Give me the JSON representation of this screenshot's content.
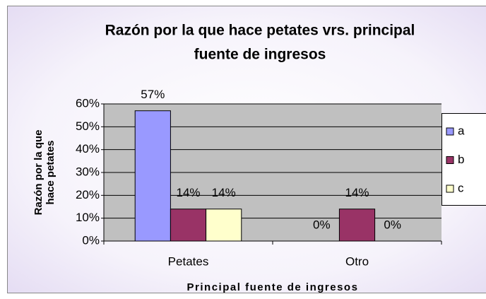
{
  "chart_data": {
    "type": "bar",
    "title": [
      "Razón por la que hace petates vrs. principal",
      "fuente de ingresos"
    ],
    "xlabel": "Principal fuente de ingresos",
    "ylabel": [
      "Razón por la que",
      "hace petates"
    ],
    "categories": [
      "Petates",
      "Otro"
    ],
    "series": [
      {
        "name": "a",
        "color": "#9999ff",
        "values": [
          57,
          0
        ],
        "value_labels": [
          "57%",
          "0%"
        ]
      },
      {
        "name": "b",
        "color": "#993366",
        "values": [
          14,
          14
        ],
        "value_labels": [
          "14%",
          "14%"
        ]
      },
      {
        "name": "c",
        "color": "#ffffcc",
        "values": [
          14,
          0
        ],
        "value_labels": [
          "14%",
          "0%"
        ]
      }
    ],
    "ylim": [
      0,
      60
    ],
    "yticks": [
      {
        "value": 0,
        "label": "0%"
      },
      {
        "value": 10,
        "label": "10%"
      },
      {
        "value": 20,
        "label": "20%"
      },
      {
        "value": 30,
        "label": "30%"
      },
      {
        "value": 40,
        "label": "40%"
      },
      {
        "value": 50,
        "label": "50%"
      },
      {
        "value": 60,
        "label": "60%"
      }
    ],
    "grid": true,
    "legend": "right"
  }
}
